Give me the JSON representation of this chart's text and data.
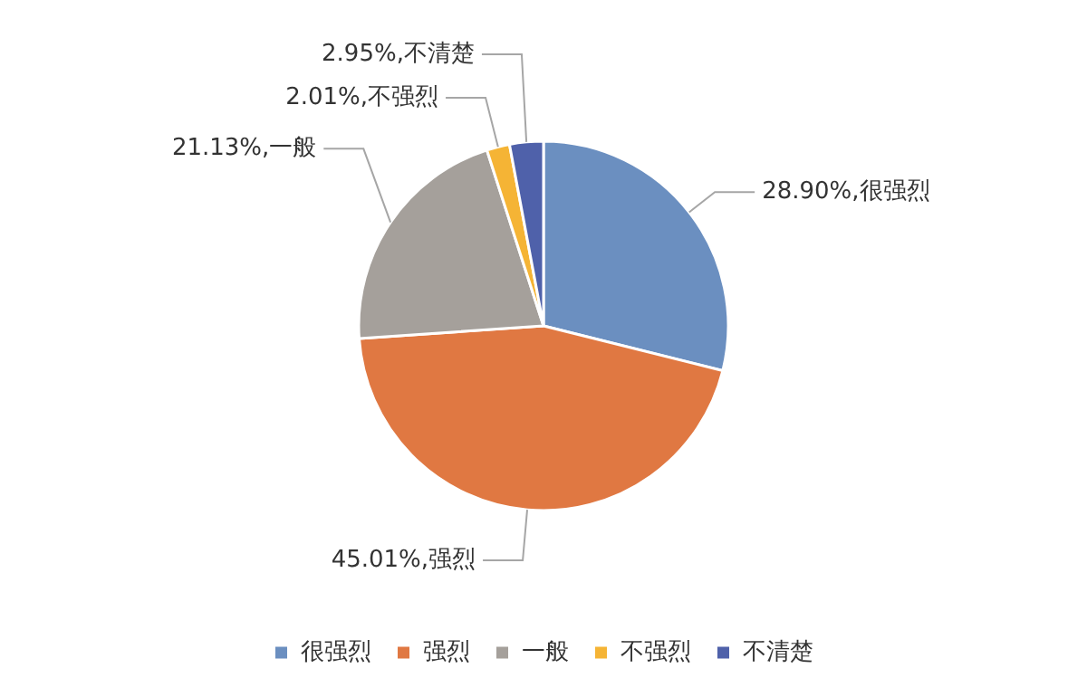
{
  "chart_data": {
    "type": "pie",
    "categories": [
      "很强烈",
      "强烈",
      "一般",
      "不强烈",
      "不清楚"
    ],
    "values": [
      28.9,
      45.01,
      21.13,
      2.01,
      2.95
    ],
    "colors": [
      "#6b8fc0",
      "#e07842",
      "#a5a09b",
      "#f5b435",
      "#4f61aa"
    ],
    "value_labels": [
      "28.90%,很强烈",
      "45.01%,强烈",
      "21.13%,一般",
      "2.01%,不强烈",
      "2.95%,不清楚"
    ],
    "legend": "bottom"
  }
}
